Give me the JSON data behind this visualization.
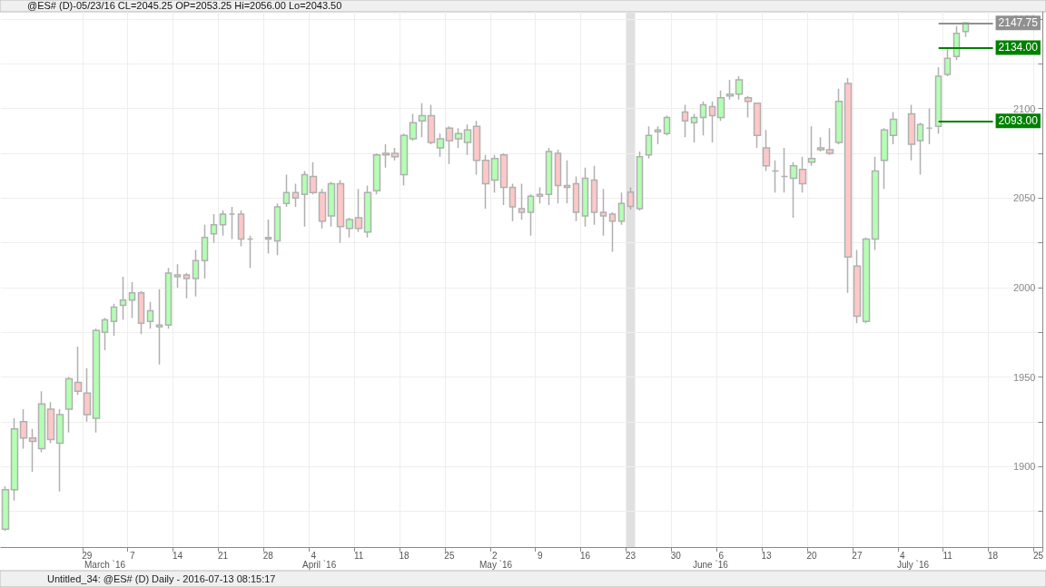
{
  "chart_data": {
    "type": "candlestick",
    "title": "@ES# (D)-05/23/16 CL=2045.25 OP=2053.25 Hi=2056.00 Lo=2043.50",
    "annotations": [
      "March `16",
      "April `16",
      "May `16",
      "June `16",
      "July `16",
      "Untitled_34: @ES# (D) Daily - 2016-07-13 08:15:17"
    ],
    "categories": [
      null,
      null,
      null,
      null,
      null,
      null,
      null,
      null,
      null,
      "29",
      null,
      null,
      null,
      null,
      "7",
      null,
      null,
      null,
      null,
      "14",
      null,
      null,
      null,
      null,
      "21",
      null,
      null,
      null,
      null,
      "28",
      null,
      null,
      null,
      null,
      "4",
      null,
      null,
      null,
      null,
      "11",
      null,
      null,
      null,
      null,
      "18",
      null,
      null,
      null,
      null,
      "25",
      null,
      null,
      null,
      null,
      "2",
      null,
      null,
      null,
      null,
      "9",
      null,
      null,
      null,
      null,
      "16",
      null,
      null,
      null,
      null,
      "23",
      null,
      null,
      null,
      null,
      "30",
      null,
      null,
      null,
      null,
      "6",
      null,
      null,
      null,
      null,
      "13",
      null,
      null,
      null,
      null,
      "20",
      null,
      null,
      null,
      null,
      "27",
      null,
      null,
      null,
      null,
      "4",
      null,
      null,
      null,
      null,
      "11",
      null,
      null,
      null,
      null,
      "18",
      null,
      null,
      null,
      null,
      "25"
    ],
    "ohlc": [
      [
        1865,
        1889,
        1864,
        1887
      ],
      [
        1887,
        1927,
        1881,
        1921
      ],
      [
        1925,
        1932,
        1910,
        1916
      ],
      [
        1916,
        1921,
        1897,
        1914
      ],
      [
        1910,
        1942,
        1908,
        1935
      ],
      [
        1932,
        1936,
        1913,
        1915
      ],
      [
        1913,
        1932,
        1886,
        1929
      ],
      [
        1932,
        1950,
        1919,
        1949
      ],
      [
        1947,
        1967,
        1940,
        1942
      ],
      [
        1941,
        1955,
        1925,
        1929
      ],
      [
        1927,
        1977,
        1919,
        1976
      ],
      [
        1975,
        1983,
        1965,
        1982
      ],
      [
        1981,
        1991,
        1973,
        1989
      ],
      [
        1990,
        2006,
        1982,
        1993
      ],
      [
        1993,
        2003,
        1983,
        1997
      ],
      [
        1997,
        1998,
        1974,
        1980
      ],
      [
        1981,
        1992,
        1977,
        1987
      ],
      [
        1978,
        1999,
        1957,
        1979
      ],
      [
        1979,
        2011,
        1977,
        2008
      ],
      [
        2006,
        2013,
        2000,
        2007
      ],
      [
        2007,
        2008,
        1994,
        2005
      ],
      [
        2005,
        2021,
        1995,
        2015
      ],
      [
        2015,
        2035,
        2005,
        2028
      ],
      [
        2030,
        2041,
        2025,
        2035
      ],
      [
        2035,
        2043,
        2029,
        2041
      ],
      [
        2041,
        2045,
        2027,
        2041
      ],
      [
        2041,
        2043,
        2023,
        2027
      ],
      [
        2027,
        2029,
        2011,
        2027
      ],
      null,
      [
        2028,
        2038,
        2019,
        2027
      ],
      [
        2026,
        2047,
        2018,
        2045
      ],
      [
        2047,
        2063,
        2045,
        2053
      ],
      [
        2053,
        2058,
        2045,
        2050
      ],
      [
        2052,
        2065,
        2034,
        2063
      ],
      [
        2062,
        2070,
        2052,
        2053
      ],
      [
        2053,
        2055,
        2033,
        2037
      ],
      [
        2040,
        2059,
        2034,
        2058
      ],
      [
        2058,
        2060,
        2025,
        2034
      ],
      [
        2033,
        2039,
        2028,
        2038
      ],
      [
        2039,
        2055,
        2031,
        2033
      ],
      [
        2031,
        2057,
        2028,
        2053
      ],
      [
        2054,
        2075,
        2052,
        2074
      ],
      [
        2074,
        2080,
        2067,
        2075
      ],
      [
        2075,
        2078,
        2071,
        2073
      ],
      [
        2063,
        2086,
        2057,
        2085
      ],
      [
        2083,
        2097,
        2082,
        2092
      ],
      [
        2093,
        2103,
        2084,
        2096
      ],
      [
        2096,
        2102,
        2080,
        2081
      ],
      [
        2078,
        2086,
        2073,
        2083
      ],
      [
        2089,
        2090,
        2069,
        2082
      ],
      [
        2083,
        2089,
        2078,
        2086
      ],
      [
        2081,
        2091,
        2074,
        2088
      ],
      [
        2090,
        2093,
        2063,
        2071
      ],
      [
        2071,
        2074,
        2044,
        2058
      ],
      [
        2060,
        2074,
        2053,
        2072
      ],
      [
        2074,
        2075,
        2046,
        2056
      ],
      [
        2056,
        2058,
        2037,
        2045
      ],
      [
        2044,
        2058,
        2038,
        2042
      ],
      [
        2042,
        2052,
        2029,
        2051
      ],
      [
        2051,
        2056,
        2047,
        2052
      ],
      [
        2052,
        2078,
        2046,
        2076
      ],
      [
        2075,
        2077,
        2047,
        2057
      ],
      [
        2057,
        2071,
        2047,
        2056
      ],
      [
        2058,
        2062,
        2037,
        2042
      ],
      [
        2040,
        2067,
        2034,
        2061
      ],
      [
        2060,
        2068,
        2035,
        2042
      ],
      [
        2042,
        2055,
        2029,
        2040
      ],
      [
        2041,
        2042,
        2020,
        2037
      ],
      [
        2037,
        2053,
        2035,
        2047
      ],
      [
        2053.25,
        2056,
        2043.5,
        2045.25
      ],
      [
        2044,
        2076,
        2043,
        2073
      ],
      [
        2074,
        2090,
        2072,
        2085
      ],
      [
        2087,
        2090,
        2080,
        2088
      ],
      [
        2086,
        2096,
        2085,
        2095
      ],
      null,
      [
        2098,
        2102,
        2084,
        2093
      ],
      [
        2092,
        2097,
        2081,
        2095
      ],
      [
        2095,
        2104,
        2085,
        2102
      ],
      [
        2101,
        2104,
        2081,
        2096
      ],
      [
        2095,
        2110,
        2093,
        2106
      ],
      [
        2107,
        2116,
        2105,
        2108
      ],
      [
        2108,
        2118,
        2105,
        2116
      ],
      [
        2106,
        2107,
        2095,
        2104
      ],
      [
        2103,
        2103,
        2078,
        2085
      ],
      [
        2078,
        2088,
        2065,
        2068
      ],
      [
        2065,
        2071,
        2053,
        2065
      ],
      [
        2062,
        2078,
        2053,
        2062
      ],
      [
        2061,
        2070,
        2039,
        2068
      ],
      [
        2066,
        2073,
        2053,
        2058
      ],
      [
        2070,
        2090,
        2068,
        2072
      ],
      [
        2077,
        2084,
        2076,
        2078
      ],
      [
        2077,
        2089,
        2074,
        2075
      ],
      [
        2081,
        2111,
        2080,
        2104
      ],
      [
        2114,
        2117,
        1997,
        2017
      ],
      [
        2012,
        2021,
        1980,
        1984
      ],
      [
        1981,
        2028,
        1980,
        2027
      ],
      [
        2027,
        2073,
        2021,
        2065
      ],
      [
        2071,
        2089,
        2055,
        2088
      ],
      [
        2085,
        2098,
        2080,
        2094
      ],
      null,
      [
        2097,
        2102,
        2071,
        2080
      ],
      [
        2082,
        2092,
        2063,
        2091
      ],
      [
        2089,
        2100,
        2080,
        2089
      ],
      [
        2090,
        2123,
        2086,
        2118
      ],
      [
        2119,
        2134,
        2118,
        2128
      ],
      [
        2129,
        2146,
        2127,
        2142
      ],
      [
        2143,
        2148,
        2140,
        2147.75
      ],
      null,
      null,
      null,
      null,
      null,
      null,
      null,
      null
    ],
    "colors": [
      "#b3ffb3",
      "#b3ffb3",
      "#ffc8c8",
      "#ffc8c8",
      "#b3ffb3",
      "#ffc8c8",
      "#b3ffb3",
      "#b3ffb3",
      "#ffc8c8",
      "#ffc8c8",
      "#b3ffb3",
      "#b3ffb3",
      "#b3ffb3",
      "#b3ffb3",
      "#b3ffb3",
      "#ffc8c8",
      "#b3ffb3",
      "#b3ffb3",
      "#b3ffb3",
      "#b3ffb3",
      "#ffc8c8",
      "#b3ffb3",
      "#b3ffb3",
      "#b3ffb3",
      "#b3ffb3",
      "#b0b0b0",
      "#ffc8c8",
      "#b0b0b0",
      null,
      "#ffc8c8",
      "#b3ffb3",
      "#b3ffb3",
      "#ffc8c8",
      "#b3ffb3",
      "#ffc8c8",
      "#ffc8c8",
      "#b3ffb3",
      "#ffc8c8",
      "#b3ffb3",
      "#ffc8c8",
      "#b3ffb3",
      "#b3ffb3",
      "#b3ffb3",
      "#ffc8c8",
      "#b3ffb3",
      "#b3ffb3",
      "#b3ffb3",
      "#ffc8c8",
      "#b3ffb3",
      "#ffc8c8",
      "#b3ffb3",
      "#b3ffb3",
      "#ffc8c8",
      "#ffc8c8",
      "#b3ffb3",
      "#ffc8c8",
      "#ffc8c8",
      "#ffc8c8",
      "#b3ffb3",
      "#b3ffb3",
      "#b3ffb3",
      "#ffc8c8",
      "#ffc8c8",
      "#ffc8c8",
      "#b3ffb3",
      "#ffc8c8",
      "#ffc8c8",
      "#ffc8c8",
      "#b3ffb3",
      "#ffc8c8",
      "#b3ffb3",
      "#b3ffb3",
      "#b3ffb3",
      "#b3ffb3",
      null,
      "#ffc8c8",
      "#b3ffb3",
      "#b3ffb3",
      "#ffc8c8",
      "#b3ffb3",
      "#b3ffb3",
      "#b3ffb3",
      "#ffc8c8",
      "#ffc8c8",
      "#ffc8c8",
      "#b0b0b0",
      "#b0b0b0",
      "#b3ffb3",
      "#ffc8c8",
      "#b3ffb3",
      "#b3ffb3",
      "#ffc8c8",
      "#b3ffb3",
      "#ffc8c8",
      "#ffc8c8",
      "#b3ffb3",
      "#b3ffb3",
      "#b3ffb3",
      "#b3ffb3",
      null,
      "#ffc8c8",
      "#b3ffb3",
      "#b0b0b0",
      "#b3ffb3",
      "#b3ffb3",
      "#b3ffb3",
      "#b3ffb3",
      null,
      null,
      null,
      null,
      null,
      null,
      null,
      null
    ],
    "ylim": [
      1855,
      2154
    ],
    "yticks": [
      {
        "value": 1875,
        "label": null
      },
      1900,
      {
        "value": 1925,
        "label": null
      },
      1950,
      {
        "value": 1975,
        "label": null
      },
      2000,
      {
        "value": 2025,
        "label": null
      },
      2050,
      {
        "value": 2075,
        "label": null
      },
      2100,
      {
        "value": 2125,
        "label": null
      },
      2150
    ],
    "ref_lines": [
      {
        "axis": "y",
        "value": 2134,
        "label": "2134.00",
        "color": "#008000"
      },
      {
        "axis": "y",
        "value": 2093,
        "label": "2093.00",
        "color": "#008000"
      },
      {
        "axis": "y",
        "value": 2147.75,
        "label": "2147.75",
        "color": "#909090"
      }
    ],
    "bands": [
      {
        "axis": "x",
        "from": "23",
        "to": "23",
        "color": "#e0e0e0"
      }
    ],
    "grid": true
  }
}
